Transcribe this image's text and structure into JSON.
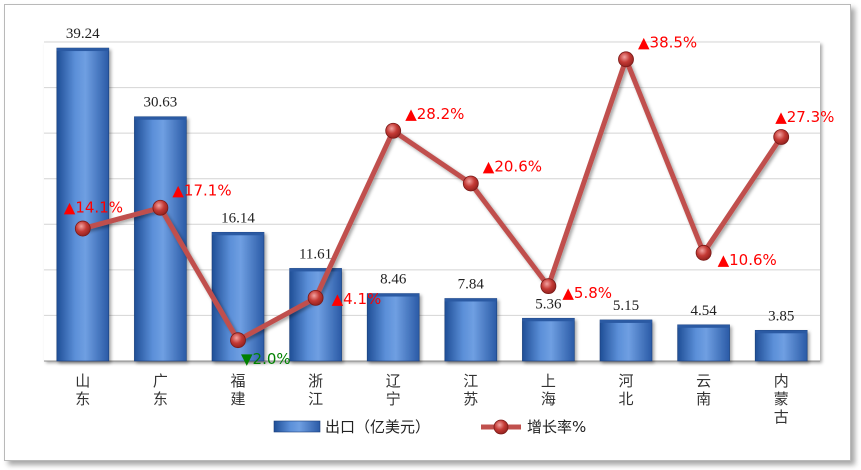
{
  "chart_data": {
    "type": "bar+line",
    "categories": [
      "山东",
      "广东",
      "福建",
      "浙江",
      "辽宁",
      "江苏",
      "上海",
      "河北",
      "云南",
      "内蒙古"
    ],
    "series": [
      {
        "name": "出口（亿美元）",
        "type": "bar",
        "values": [
          39.24,
          30.63,
          16.14,
          11.61,
          8.46,
          7.84,
          5.36,
          5.15,
          4.54,
          3.85
        ],
        "value_labels": [
          "39.24",
          "30.63",
          "16.14",
          "11.61",
          "8.46",
          "7.84",
          "5.36",
          "5.15",
          "4.54",
          "3.85"
        ],
        "color": "#3a72c4"
      },
      {
        "name": "增长率%",
        "type": "line",
        "values": [
          14.1,
          17.1,
          -2.0,
          4.1,
          28.2,
          20.6,
          5.8,
          38.5,
          10.6,
          27.3
        ],
        "value_labels": [
          "▲14.1%",
          "▲17.1%",
          "▼2.0%",
          "▲4.1%",
          "▲28.2%",
          "▲20.6%",
          "▲5.8%",
          "▲38.5%",
          "▲10.6%",
          "▲27.3%"
        ],
        "color": "#c0504d",
        "up_color": "#ff0000",
        "down_color": "#008000"
      }
    ],
    "bar_ylim": [
      0,
      40
    ],
    "line_ylim": [
      -5,
      41
    ],
    "grid": true,
    "legend": "bottom"
  }
}
